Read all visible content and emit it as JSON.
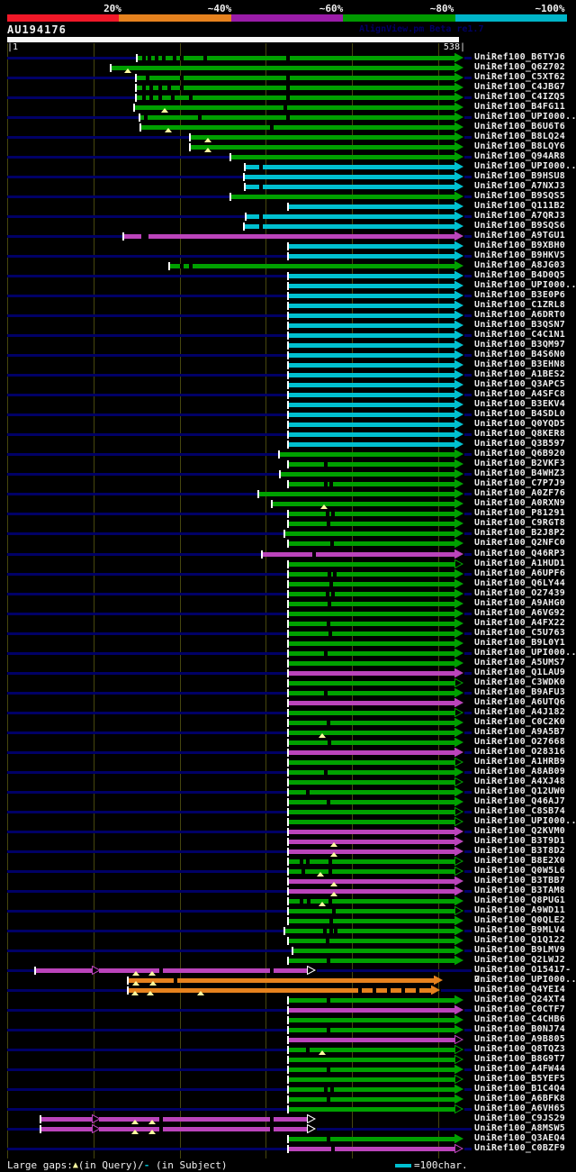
{
  "header": {
    "query_id": "AU194176",
    "watermark": "AlignView.pm Beta re1.7",
    "ruler": {
      "start": "|1",
      "end": "538|"
    },
    "scale": {
      "labels": [
        "20%",
        "~40%",
        "~60%",
        "~80%",
        "~100%"
      ],
      "colors": [
        "#f01828",
        "#e6821e",
        "#9a1ca8",
        "#009a00",
        "#00b4c8"
      ]
    }
  },
  "legend": {
    "prefix": "Large gaps:",
    "query_symbol": "▲",
    "query_text": "(in Query)/",
    "subject_symbol": "-",
    "subject_text": " (in Subject)",
    "swatch_label": "=100char."
  },
  "colors": {
    "green": "#00a000",
    "cyan": "#00c0d0",
    "magenta": "#bb44bb",
    "orange": "#e6821e",
    "navy": "#000066",
    "grid": "#46460e",
    "tick": "#ffffff",
    "gap_triangle": "#ffffa0",
    "label": "#ededed"
  },
  "rows": [
    {
      "label": "UniRef100_B6TYJ6",
      "color": "green",
      "start": 153,
      "dashes": [
        158,
        164,
        172,
        180,
        192,
        200,
        226,
        318
      ]
    },
    {
      "label": "UniRef100_Q6Z702",
      "color": "green",
      "start": 124,
      "tris": [
        141
      ]
    },
    {
      "label": "UniRef100_C5XT62",
      "color": "green",
      "start": 152,
      "dashes": [
        162,
        200,
        318
      ]
    },
    {
      "label": "UniRef100_C4JBG7",
      "color": "green",
      "start": 152,
      "dashes": [
        158,
        166,
        176,
        186,
        200,
        318
      ]
    },
    {
      "label": "UniRef100_C4IZQ5",
      "color": "green",
      "start": 152,
      "dashes": [
        158,
        166,
        176,
        190,
        210,
        318
      ]
    },
    {
      "label": "UniRef100_B4FG11",
      "color": "green",
      "start": 150,
      "tris": [
        182
      ],
      "dashes": [
        315
      ]
    },
    {
      "label": "UniRef100_UPI000..",
      "color": "green",
      "start": 156,
      "dashes": [
        160,
        220,
        318
      ]
    },
    {
      "label": "UniRef100_B6U6T6",
      "color": "green",
      "start": 157,
      "tris": [
        186
      ],
      "dashes": [
        300
      ]
    },
    {
      "label": "UniRef100_B8LQ24",
      "color": "green",
      "start": 212,
      "tris": [
        230
      ]
    },
    {
      "label": "UniRef100_B8LQY6",
      "color": "green",
      "start": 212,
      "tris": [
        230
      ]
    },
    {
      "label": "UniRef100_Q94AR8",
      "color": "green",
      "start": 257
    },
    {
      "label": "UniRef100_UPI000..",
      "color": "cyan",
      "start": 273,
      "dashes": [
        288
      ]
    },
    {
      "label": "UniRef100_B9HSU8",
      "color": "cyan",
      "start": 272
    },
    {
      "label": "UniRef100_A7NXJ3",
      "color": "cyan",
      "start": 273,
      "dashes": [
        288
      ]
    },
    {
      "label": "UniRef100_B9SQS5",
      "color": "green",
      "start": 257
    },
    {
      "label": "UniRef100_Q111B2",
      "color": "cyan",
      "start": 321
    },
    {
      "label": "UniRef100_A7QRJ3",
      "color": "cyan",
      "start": 274,
      "dashes": [
        288
      ]
    },
    {
      "label": "UniRef100_B9SQS6",
      "color": "cyan",
      "start": 272,
      "dashes": [
        288
      ]
    },
    {
      "label": "UniRef100_A9TGU1",
      "color": "magenta",
      "start": 138,
      "dashes": [
        157,
        161
      ]
    },
    {
      "label": "UniRef100_B9XBH0",
      "color": "cyan",
      "start": 321
    },
    {
      "label": "UniRef100_B9HKV5",
      "color": "cyan",
      "start": 321
    },
    {
      "label": "UniRef100_A8JG03",
      "color": "green",
      "start": 189,
      "dashes": [
        200,
        210
      ]
    },
    {
      "label": "UniRef100_B4D0Q5",
      "color": "cyan",
      "start": 321
    },
    {
      "label": "UniRef100_UPI000..",
      "color": "cyan",
      "start": 321
    },
    {
      "label": "UniRef100_B3E0P6",
      "color": "cyan",
      "start": 321
    },
    {
      "label": "UniRef100_C1ZRL8",
      "color": "cyan",
      "start": 321
    },
    {
      "label": "UniRef100_A6DRT0",
      "color": "cyan",
      "start": 321
    },
    {
      "label": "UniRef100_B3QSN7",
      "color": "cyan",
      "start": 321
    },
    {
      "label": "UniRef100_C4C1N1",
      "color": "cyan",
      "start": 321
    },
    {
      "label": "UniRef100_B3QM97",
      "color": "cyan",
      "start": 321
    },
    {
      "label": "UniRef100_B4S6N0",
      "color": "cyan",
      "start": 321
    },
    {
      "label": "UniRef100_B3EHN8",
      "color": "cyan",
      "start": 321
    },
    {
      "label": "UniRef100_A1BES2",
      "color": "cyan",
      "start": 321
    },
    {
      "label": "UniRef100_Q3APC5",
      "color": "cyan",
      "start": 321
    },
    {
      "label": "UniRef100_A4SFC8",
      "color": "cyan",
      "start": 321
    },
    {
      "label": "UniRef100_B3EKV4",
      "color": "cyan",
      "start": 321
    },
    {
      "label": "UniRef100_B4SDL0",
      "color": "cyan",
      "start": 321
    },
    {
      "label": "UniRef100_Q0YQD5",
      "color": "cyan",
      "start": 321
    },
    {
      "label": "UniRef100_Q8KER8",
      "color": "cyan",
      "start": 321
    },
    {
      "label": "UniRef100_Q3B597",
      "color": "cyan",
      "start": 321
    },
    {
      "label": "UniRef100_Q6B920",
      "color": "green",
      "start": 311
    },
    {
      "label": "UniRef100_B2VKF3",
      "color": "green",
      "start": 321,
      "dashes": [
        360
      ]
    },
    {
      "label": "UniRef100_B4WHZ3",
      "color": "green",
      "start": 312
    },
    {
      "label": "UniRef100_C7P7J9",
      "color": "green",
      "start": 321,
      "dashes": [
        360,
        366
      ]
    },
    {
      "label": "UniRef100_A0ZF76",
      "color": "green",
      "start": 288
    },
    {
      "label": "UniRef100_A0RXN9",
      "color": "green",
      "start": 303,
      "tris": [
        359
      ]
    },
    {
      "label": "UniRef100_P81291",
      "color": "green",
      "start": 321,
      "dashes": [
        362,
        368
      ]
    },
    {
      "label": "UniRef100_C9RGT8",
      "color": "green",
      "start": 321,
      "dashes": [
        363
      ]
    },
    {
      "label": "UniRef100_B2J8P2",
      "color": "green",
      "start": 317
    },
    {
      "label": "UniRef100_Q2NFC0",
      "color": "green",
      "start": 321,
      "dashes": [
        367
      ]
    },
    {
      "label": "UniRef100_Q46RP3",
      "color": "magenta",
      "start": 292,
      "dashes": [
        347
      ]
    },
    {
      "label": "UniRef100_A1HUD1",
      "color": "green",
      "start": 321,
      "arrow": "hollow"
    },
    {
      "label": "UniRef100_A6UPF6",
      "color": "green",
      "start": 321,
      "dashes": [
        364,
        370
      ]
    },
    {
      "label": "UniRef100_Q6LY44",
      "color": "green",
      "start": 321,
      "dashes": [
        366
      ]
    },
    {
      "label": "UniRef100_O27439",
      "color": "green",
      "start": 321,
      "dashes": [
        362,
        368
      ]
    },
    {
      "label": "UniRef100_A9AHG0",
      "color": "green",
      "start": 321,
      "dashes": [
        364
      ]
    },
    {
      "label": "UniRef100_A6VG92",
      "color": "green",
      "start": 321
    },
    {
      "label": "UniRef100_A4FX22",
      "color": "green",
      "start": 321,
      "dashes": [
        363
      ]
    },
    {
      "label": "UniRef100_C5U763",
      "color": "green",
      "start": 321,
      "dashes": [
        365
      ]
    },
    {
      "label": "UniRef100_B9L0Y1",
      "color": "green",
      "start": 321
    },
    {
      "label": "UniRef100_UPI000..",
      "color": "green",
      "start": 321,
      "dashes": [
        360
      ]
    },
    {
      "label": "UniRef100_A5UMS7",
      "color": "green",
      "start": 321
    },
    {
      "label": "UniRef100_Q1LAU9",
      "color": "magenta",
      "start": 321
    },
    {
      "label": "UniRef100_C3WDK0",
      "color": "green",
      "start": 321,
      "arrow": "hollow"
    },
    {
      "label": "UniRef100_B9AFU3",
      "color": "green",
      "start": 321,
      "dashes": [
        360
      ]
    },
    {
      "label": "UniRef100_A6UTQ6",
      "color": "magenta",
      "start": 321
    },
    {
      "label": "UniRef100_A4J182",
      "color": "green",
      "start": 321,
      "arrow": "hollow"
    },
    {
      "label": "UniRef100_C0C2K0",
      "color": "green",
      "start": 321,
      "dashes": [
        363
      ]
    },
    {
      "label": "UniRef100_A9A5B7",
      "color": "green",
      "start": 321,
      "tris": [
        357
      ]
    },
    {
      "label": "UniRef100_O27668",
      "color": "green",
      "start": 321,
      "dashes": [
        364
      ]
    },
    {
      "label": "UniRef100_O28316",
      "color": "magenta",
      "start": 321
    },
    {
      "label": "UniRef100_A1HRB9",
      "color": "green",
      "start": 321,
      "arrow": "hollow"
    },
    {
      "label": "UniRef100_A8AB09",
      "color": "green",
      "start": 321,
      "dashes": [
        360
      ]
    },
    {
      "label": "UniRef100_A4XJ48",
      "color": "green",
      "start": 321,
      "arrow": "hollow"
    },
    {
      "label": "UniRef100_Q12UW0",
      "color": "green",
      "start": 321,
      "dashes": [
        340
      ]
    },
    {
      "label": "UniRef100_Q46AJ7",
      "color": "green",
      "start": 321,
      "dashes": [
        363
      ]
    },
    {
      "label": "UniRef100_C8SB74",
      "color": "green",
      "start": 321,
      "arrow": "hollow"
    },
    {
      "label": "UniRef100_UPI000..",
      "color": "green",
      "start": 321,
      "arrow": "hollow"
    },
    {
      "label": "UniRef100_Q2KVM0",
      "color": "magenta",
      "start": 321
    },
    {
      "label": "UniRef100_B3T9D1",
      "color": "magenta",
      "start": 321,
      "tris": [
        370
      ]
    },
    {
      "label": "UniRef100_B3T8D2",
      "color": "magenta",
      "start": 321,
      "tris": [
        370
      ]
    },
    {
      "label": "UniRef100_B8E2X0",
      "color": "green",
      "start": 321,
      "arrow": "hollow",
      "dashes": [
        333,
        340,
        365
      ]
    },
    {
      "label": "UniRef100_Q0W5L6",
      "color": "green",
      "start": 321,
      "arrow": "hollow",
      "dashes": [
        335,
        365
      ],
      "tris": [
        355
      ]
    },
    {
      "label": "UniRef100_B3TBB7",
      "color": "magenta",
      "start": 321,
      "tris": [
        370
      ]
    },
    {
      "label": "UniRef100_B3TAM8",
      "color": "magenta",
      "start": 321,
      "tris": [
        370
      ]
    },
    {
      "label": "UniRef100_Q8PUG1",
      "color": "green",
      "start": 321,
      "dashes": [
        333,
        341,
        365
      ],
      "tris": [
        357
      ]
    },
    {
      "label": "UniRef100_A9WD11",
      "color": "green",
      "start": 321,
      "arrow": "hollow",
      "dashes": [
        369
      ]
    },
    {
      "label": "UniRef100_Q0QLE2",
      "color": "green",
      "start": 321,
      "dashes": [
        366
      ]
    },
    {
      "label": "UniRef100_B9MLV4",
      "color": "green",
      "start": 317,
      "dashes": [
        359,
        366,
        371
      ]
    },
    {
      "label": "UniRef100_Q1Q122",
      "color": "green",
      "start": 321,
      "dashes": [
        362
      ]
    },
    {
      "label": "UniRef100_B9LMV9",
      "color": "green",
      "start": 326
    },
    {
      "label": "UniRef100_Q2LWJ2",
      "color": "green",
      "start": 321,
      "dashes": [
        363
      ]
    },
    {
      "label": "UniRef100_O15417-2",
      "color": "magenta",
      "special": "two_segment",
      "start": 40,
      "mid": 103,
      "end": 341,
      "dashes": [
        177,
        300
      ],
      "tris": [
        150,
        168
      ]
    },
    {
      "label": "UniRef100_UPI000..",
      "color": "orange",
      "start": 143,
      "end": 482,
      "tris": [
        150,
        169
      ],
      "dashes": [
        193
      ]
    },
    {
      "label": "UniRef100_Q4YEI4",
      "color": "orange",
      "start": 143,
      "end": 479,
      "tris": [
        149,
        166,
        222
      ],
      "dashes": [
        398,
        414,
        430,
        446,
        462
      ]
    },
    {
      "label": "UniRef100_Q24XT4",
      "color": "green",
      "start": 321,
      "dashes": [
        363
      ]
    },
    {
      "label": "UniRef100_C0CTF7",
      "color": "magenta",
      "start": 321
    },
    {
      "label": "UniRef100_C4CHB6",
      "color": "green",
      "start": 321
    },
    {
      "label": "UniRef100_B0NJ74",
      "color": "green",
      "start": 321,
      "dashes": [
        363
      ]
    },
    {
      "label": "UniRef100_A9B805",
      "color": "magenta",
      "start": 321,
      "arrow": "hollow"
    },
    {
      "label": "UniRef100_Q8TQZ3",
      "color": "green",
      "start": 321,
      "arrow": "hollow",
      "tris": [
        357
      ],
      "dashes": [
        340
      ]
    },
    {
      "label": "UniRef100_B8G9T7",
      "color": "green",
      "start": 321,
      "arrow": "hollow"
    },
    {
      "label": "UniRef100_A4FW44",
      "color": "green",
      "start": 321,
      "dashes": [
        363
      ]
    },
    {
      "label": "UniRef100_B5YEF5",
      "color": "green",
      "start": 321,
      "arrow": "hollow"
    },
    {
      "label": "UniRef100_B1C4Q4",
      "color": "green",
      "start": 321,
      "dashes": [
        360,
        367
      ]
    },
    {
      "label": "UniRef100_A6BFK8",
      "color": "green",
      "start": 321,
      "dashes": [
        363
      ]
    },
    {
      "label": "UniRef100_A6VH65",
      "color": "green",
      "start": 321,
      "arrow": "hollow"
    },
    {
      "label": "UniRef100_C9JS29",
      "color": "magenta",
      "special": "two_segment",
      "start": 46,
      "mid": 103,
      "end": 341,
      "dashes": [
        177,
        300
      ],
      "tris": [
        149,
        168
      ]
    },
    {
      "label": "UniRef100_A8MSW5",
      "color": "magenta",
      "special": "two_segment",
      "start": 46,
      "mid": 103,
      "end": 341,
      "dashes": [
        177,
        300
      ],
      "tris": [
        149,
        168
      ]
    },
    {
      "label": "UniRef100_Q3AEQ4",
      "color": "green",
      "start": 321,
      "dashes": [
        363
      ]
    },
    {
      "label": "UniRef100_C0BZF9",
      "color": "magenta",
      "start": 321,
      "arrow": "hollow",
      "dashes": [
        368
      ]
    }
  ]
}
